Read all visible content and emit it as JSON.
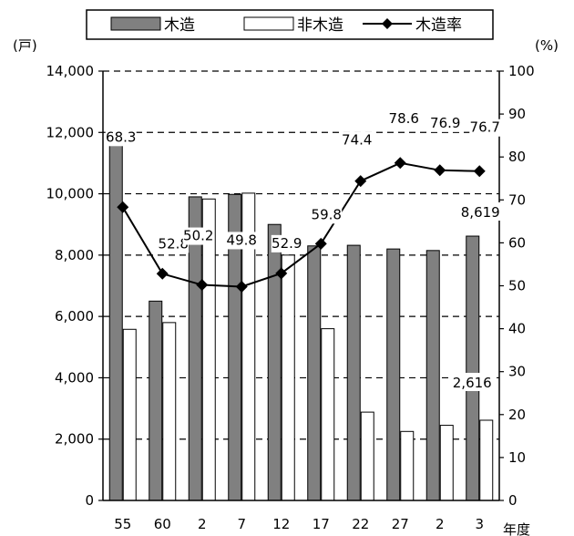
{
  "chart_data": {
    "type": "bar",
    "categories": [
      "55",
      "60",
      "2",
      "7",
      "12",
      "17",
      "22",
      "27",
      "2",
      "3"
    ],
    "series": [
      {
        "name": "木造",
        "type": "bar",
        "axis": "left",
        "values": [
          12000,
          6500,
          9900,
          9980,
          9000,
          8300,
          8320,
          8200,
          8150,
          8619
        ],
        "color": "#808080"
      },
      {
        "name": "非木造",
        "type": "bar",
        "axis": "left",
        "values": [
          5580,
          5800,
          9830,
          10020,
          8000,
          5600,
          2880,
          2250,
          2450,
          2616
        ],
        "color": "#ffffff"
      },
      {
        "name": "木造率",
        "type": "line",
        "axis": "right",
        "values": [
          68.3,
          52.8,
          50.2,
          49.8,
          52.9,
          59.8,
          74.4,
          78.6,
          76.9,
          76.7
        ],
        "color": "#000000",
        "marker": "diamond"
      }
    ],
    "value_labels": {
      "木造率": [
        "68.3",
        "52.8",
        "50.2",
        "49.8",
        "52.9",
        "59.8",
        "74.4",
        "78.6",
        "76.9",
        "76.7"
      ],
      "last_wood": "8,619",
      "last_nonwood": "2,616"
    },
    "y_left": {
      "unit": "(戸)",
      "min": 0,
      "max": 14000,
      "step": 2000,
      "ticks": [
        "0",
        "2,000",
        "4,000",
        "6,000",
        "8,000",
        "10,000",
        "12,000",
        "14,000"
      ]
    },
    "y_right": {
      "unit": "(%)",
      "min": 0,
      "max": 100,
      "step": 10,
      "ticks": [
        "0",
        "10",
        "20",
        "30",
        "40",
        "50",
        "60",
        "70",
        "80",
        "90",
        "100"
      ]
    },
    "xlabel": "年度",
    "grid": "dashed-horizontal",
    "legend": {
      "position": "top"
    }
  }
}
